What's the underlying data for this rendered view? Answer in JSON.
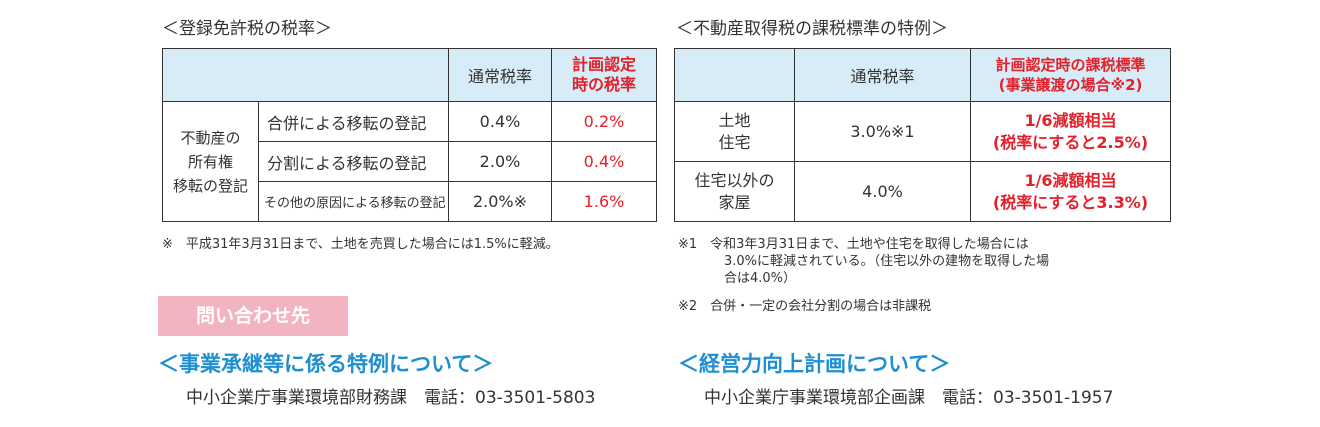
{
  "left": {
    "title": "＜登録免許税の税率＞",
    "headers": {
      "normal": "通常税率",
      "special_l1": "計画認定",
      "special_l2": "時の税率"
    },
    "row_label_l1": "不動産の",
    "row_label_l2": "所有権",
    "row_label_l3": "移転の登記",
    "rows": [
      {
        "label": "合併による移転の登記",
        "normal": "0.4%",
        "special": "0.2%"
      },
      {
        "label": "分割による移転の登記",
        "normal": "2.0%",
        "special": "0.4%"
      },
      {
        "label": "その他の原因による移転の登記",
        "normal": "2.0%※",
        "special": "1.6%"
      }
    ],
    "note": "※　平成31年3月31日まで、土地を売買した場合には1.5%に軽減。"
  },
  "right": {
    "title": "＜不動産取得税の課税標準の特例＞",
    "headers": {
      "normal": "通常税率",
      "special_l1": "計画認定時の課税標準",
      "special_l2": "(事業譲渡の場合※2)"
    },
    "rows": [
      {
        "label_l1": "土地",
        "label_l2": "住宅",
        "normal": "3.0%※1",
        "special_l1": "1/6減額相当",
        "special_l2": "(税率にすると2.5%)"
      },
      {
        "label_l1": "住宅以外の",
        "label_l2": "家屋",
        "normal": "4.0%",
        "special_l1": "1/6減額相当",
        "special_l2": "(税率にすると3.3%)"
      }
    ],
    "note1_l1": "※1　令和3年3月31日まで、土地や住宅を取得した場合には",
    "note1_l2": "3.0%に軽減されている。（住宅以外の建物を取得した場",
    "note1_l3": "合は4.0%）",
    "note2": "※2　合併・一定の会社分割の場合は非課税"
  },
  "contact": {
    "badge": "問い合わせ先",
    "left_heading": "＜事業承継等に係る特例について＞",
    "left_line": "中小企業庁事業環境部財務課　電話：03-3501-5803",
    "right_heading": "＜経営力向上計画について＞",
    "right_line": "中小企業庁事業環境部企画課　電話：03-3501-1957"
  },
  "colors": {
    "header_bg": "#d7ecf6",
    "accent_red": "#e3212c",
    "accent_blue": "#1e8fd0",
    "badge_pink": "#f3b4c1"
  }
}
